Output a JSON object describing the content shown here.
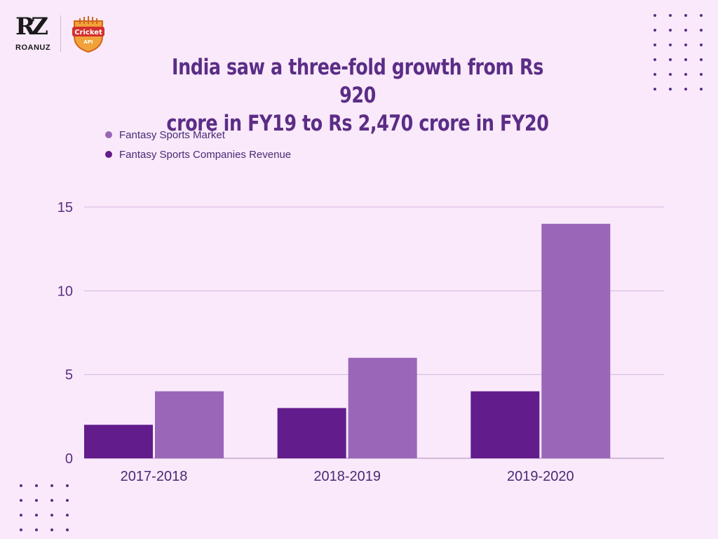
{
  "branding": {
    "roanuz_mark": "RZ",
    "roanuz_name": "ROANUZ",
    "cricket_api_name": "Cricket",
    "cricket_api_sub": "API"
  },
  "colors": {
    "background": "#f9e9fa",
    "title": "#5b2d86",
    "market": "#9966b8",
    "revenue": "#621c8c",
    "grid": "#d6b8e0"
  },
  "chart_data": {
    "type": "bar",
    "title": "India saw a three-fold growth from Rs 920 crore in FY19 to Rs 2,470 crore in FY20",
    "title_line1": "India saw a three-fold growth from Rs 920",
    "title_line2": "crore in FY19 to Rs 2,470 crore in FY20",
    "categories": [
      "2017-2018",
      "2018-2019",
      "2019-2020"
    ],
    "series": [
      {
        "name": "Fantasy Sports Companies Revenue",
        "values": [
          2,
          3,
          4
        ],
        "color": "#621c8c"
      },
      {
        "name": "Fantasy Sports Market",
        "values": [
          4,
          6,
          14
        ],
        "color": "#9966b8"
      }
    ],
    "legend": [
      "Fantasy Sports Market",
      "Fantasy Sports Companies Revenue"
    ],
    "yticks": [
      0,
      5,
      10,
      15
    ],
    "ylim": [
      0,
      15
    ],
    "xlabel": "",
    "ylabel": "",
    "grid": true,
    "legend_position": "top-left"
  }
}
